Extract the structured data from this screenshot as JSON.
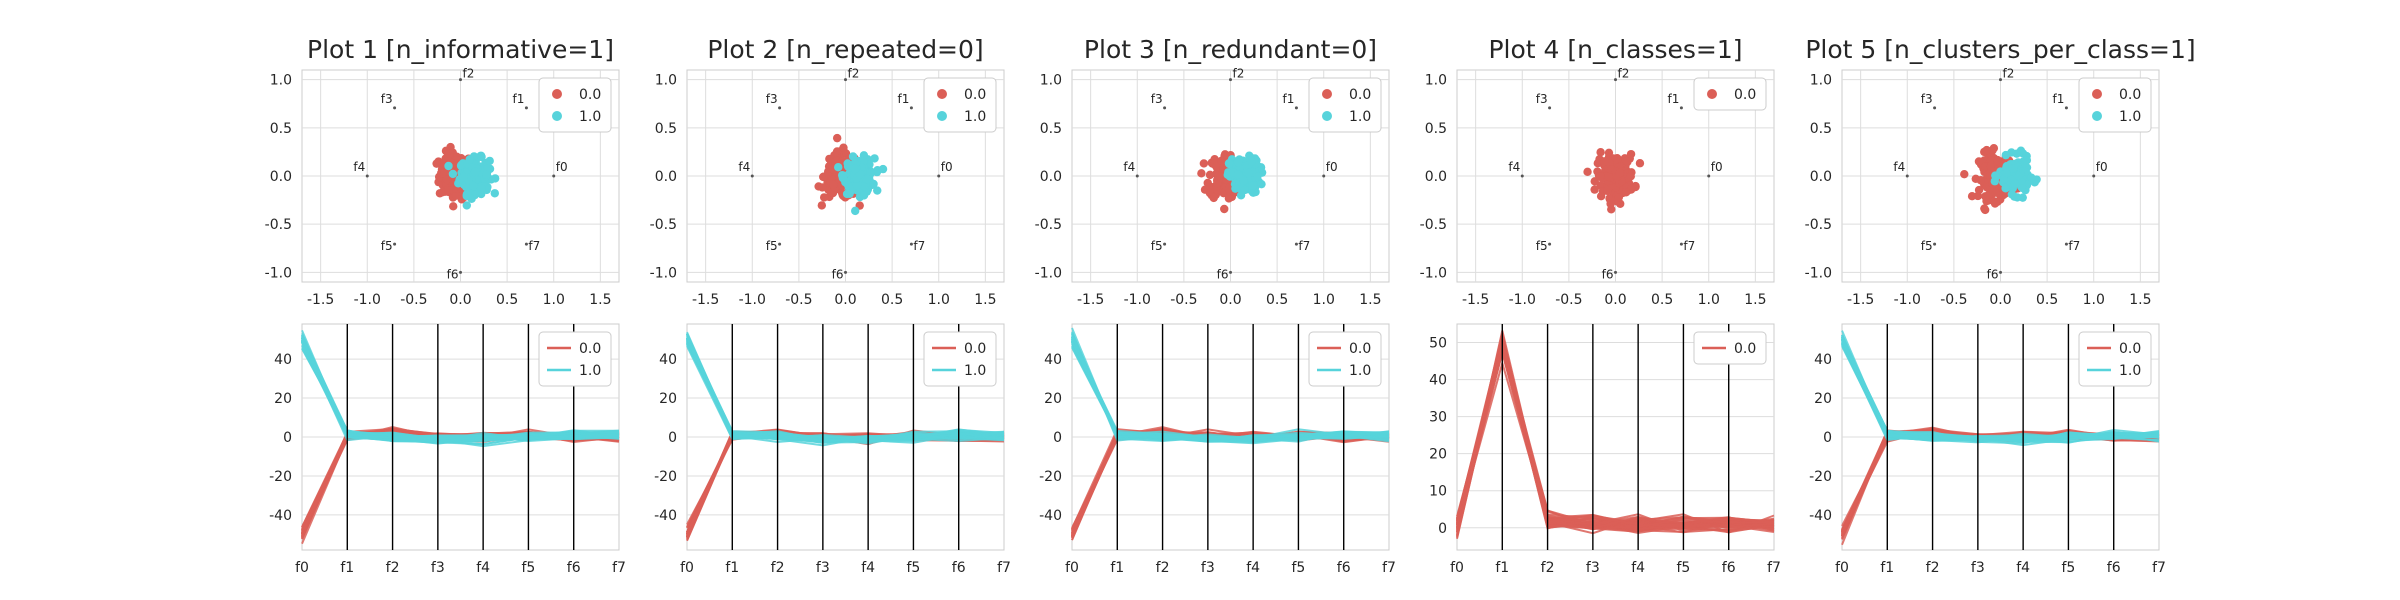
{
  "colors": {
    "class_0": "#db5f57",
    "class_1": "#57d3db",
    "grid": "#dddddd",
    "axis_line": "#000000"
  },
  "chart_data": [
    {
      "type": "scatter",
      "title": "Plot 1 [n_informative=1]",
      "xlim": [
        -1.7,
        1.7
      ],
      "ylim": [
        -1.1,
        1.1
      ],
      "xticks": [
        "-1.5",
        "-1.0",
        "-0.5",
        "0.0",
        "0.5",
        "1.0",
        "1.5"
      ],
      "yticks": [
        "1.0",
        "0.5",
        "0.0",
        "-0.5",
        "-1.0"
      ],
      "xtick_values": [
        -1.5,
        -1.0,
        -0.5,
        0.0,
        0.5,
        1.0,
        1.5
      ],
      "ytick_values": [
        1.0,
        0.5,
        0.0,
        -0.5,
        -1.0
      ],
      "anchors": [
        {
          "label": "f0",
          "x": 1.0,
          "y": 0.0
        },
        {
          "label": "f1",
          "x": 0.707,
          "y": 0.707
        },
        {
          "label": "f2",
          "x": 0.0,
          "y": 1.0
        },
        {
          "label": "f3",
          "x": -0.707,
          "y": 0.707
        },
        {
          "label": "f4",
          "x": -1.0,
          "y": 0.0
        },
        {
          "label": "f5",
          "x": -0.707,
          "y": -0.707
        },
        {
          "label": "f6",
          "x": 0.0,
          "y": -1.0
        },
        {
          "label": "f7",
          "x": 0.707,
          "y": -0.707
        }
      ],
      "series": [
        {
          "name": "0.0",
          "color": "#db5f57",
          "center": [
            -0.05,
            0.0
          ],
          "spread": [
            0.09,
            0.12
          ]
        },
        {
          "name": "1.0",
          "color": "#57d3db",
          "center": [
            0.15,
            0.0
          ],
          "spread": [
            0.08,
            0.09
          ]
        }
      ],
      "legend": "top-right",
      "grid": true
    },
    {
      "type": "scatter",
      "title": "Plot 2 [n_repeated=0]",
      "xlim": [
        -1.7,
        1.7
      ],
      "ylim": [
        -1.1,
        1.1
      ],
      "xticks": [
        "-1.5",
        "-1.0",
        "-0.5",
        "0.0",
        "0.5",
        "1.0",
        "1.5"
      ],
      "yticks": [
        "1.0",
        "0.5",
        "0.0",
        "-0.5",
        "-1.0"
      ],
      "xtick_values": [
        -1.5,
        -1.0,
        -0.5,
        0.0,
        0.5,
        1.0,
        1.5
      ],
      "ytick_values": [
        1.0,
        0.5,
        0.0,
        -0.5,
        -1.0
      ],
      "anchors": [
        {
          "label": "f0",
          "x": 1.0,
          "y": 0.0
        },
        {
          "label": "f1",
          "x": 0.707,
          "y": 0.707
        },
        {
          "label": "f2",
          "x": 0.0,
          "y": 1.0
        },
        {
          "label": "f3",
          "x": -0.707,
          "y": 0.707
        },
        {
          "label": "f4",
          "x": -1.0,
          "y": 0.0
        },
        {
          "label": "f5",
          "x": -0.707,
          "y": -0.707
        },
        {
          "label": "f6",
          "x": 0.0,
          "y": -1.0
        },
        {
          "label": "f7",
          "x": 0.707,
          "y": -0.707
        }
      ],
      "series": [
        {
          "name": "0.0",
          "color": "#db5f57",
          "center": [
            -0.05,
            0.0
          ],
          "spread": [
            0.09,
            0.12
          ]
        },
        {
          "name": "1.0",
          "color": "#57d3db",
          "center": [
            0.15,
            0.0
          ],
          "spread": [
            0.08,
            0.09
          ]
        }
      ],
      "legend": "top-right",
      "grid": true
    },
    {
      "type": "scatter",
      "title": "Plot 3 [n_redundant=0]",
      "xlim": [
        -1.7,
        1.7
      ],
      "ylim": [
        -1.1,
        1.1
      ],
      "xticks": [
        "-1.5",
        "-1.0",
        "-0.5",
        "0.0",
        "0.5",
        "1.0",
        "1.5"
      ],
      "yticks": [
        "1.0",
        "0.5",
        "0.0",
        "-0.5",
        "-1.0"
      ],
      "xtick_values": [
        -1.5,
        -1.0,
        -0.5,
        0.0,
        0.5,
        1.0,
        1.5
      ],
      "ytick_values": [
        1.0,
        0.5,
        0.0,
        -0.5,
        -1.0
      ],
      "anchors": [
        {
          "label": "f0",
          "x": 1.0,
          "y": 0.0
        },
        {
          "label": "f1",
          "x": 0.707,
          "y": 0.707
        },
        {
          "label": "f2",
          "x": 0.0,
          "y": 1.0
        },
        {
          "label": "f3",
          "x": -0.707,
          "y": 0.707
        },
        {
          "label": "f4",
          "x": -1.0,
          "y": 0.0
        },
        {
          "label": "f5",
          "x": -0.707,
          "y": -0.707
        },
        {
          "label": "f6",
          "x": 0.0,
          "y": -1.0
        },
        {
          "label": "f7",
          "x": 0.707,
          "y": -0.707
        }
      ],
      "series": [
        {
          "name": "0.0",
          "color": "#db5f57",
          "center": [
            -0.05,
            0.0
          ],
          "spread": [
            0.09,
            0.12
          ]
        },
        {
          "name": "1.0",
          "color": "#57d3db",
          "center": [
            0.15,
            0.0
          ],
          "spread": [
            0.08,
            0.09
          ]
        }
      ],
      "legend": "top-right",
      "grid": true
    },
    {
      "type": "scatter",
      "title": "Plot 4 [n_classes=1]",
      "xlim": [
        -1.7,
        1.7
      ],
      "ylim": [
        -1.1,
        1.1
      ],
      "xticks": [
        "-1.5",
        "-1.0",
        "-0.5",
        "0.0",
        "0.5",
        "1.0",
        "1.5"
      ],
      "yticks": [
        "1.0",
        "0.5",
        "0.0",
        "-0.5",
        "-1.0"
      ],
      "xtick_values": [
        -1.5,
        -1.0,
        -0.5,
        0.0,
        0.5,
        1.0,
        1.5
      ],
      "ytick_values": [
        1.0,
        0.5,
        0.0,
        -0.5,
        -1.0
      ],
      "anchors": [
        {
          "label": "f0",
          "x": 1.0,
          "y": 0.0
        },
        {
          "label": "f1",
          "x": 0.707,
          "y": 0.707
        },
        {
          "label": "f2",
          "x": 0.0,
          "y": 1.0
        },
        {
          "label": "f3",
          "x": -0.707,
          "y": 0.707
        },
        {
          "label": "f4",
          "x": -1.0,
          "y": 0.0
        },
        {
          "label": "f5",
          "x": -0.707,
          "y": -0.707
        },
        {
          "label": "f6",
          "x": 0.0,
          "y": -1.0
        },
        {
          "label": "f7",
          "x": 0.707,
          "y": -0.707
        }
      ],
      "series": [
        {
          "name": "0.0",
          "color": "#db5f57",
          "center": [
            0.0,
            0.0
          ],
          "spread": [
            0.1,
            0.11
          ]
        }
      ],
      "legend": "top-right",
      "grid": true
    },
    {
      "type": "scatter",
      "title": "Plot 5 [n_clusters_per_class=1]",
      "xlim": [
        -1.7,
        1.7
      ],
      "ylim": [
        -1.1,
        1.1
      ],
      "xticks": [
        "-1.5",
        "-1.0",
        "-0.5",
        "0.0",
        "0.5",
        "1.0",
        "1.5"
      ],
      "yticks": [
        "1.0",
        "0.5",
        "0.0",
        "-0.5",
        "-1.0"
      ],
      "xtick_values": [
        -1.5,
        -1.0,
        -0.5,
        0.0,
        0.5,
        1.0,
        1.5
      ],
      "ytick_values": [
        1.0,
        0.5,
        0.0,
        -0.5,
        -1.0
      ],
      "anchors": [
        {
          "label": "f0",
          "x": 1.0,
          "y": 0.0
        },
        {
          "label": "f1",
          "x": 0.707,
          "y": 0.707
        },
        {
          "label": "f2",
          "x": 0.0,
          "y": 1.0
        },
        {
          "label": "f3",
          "x": -0.707,
          "y": 0.707
        },
        {
          "label": "f4",
          "x": -1.0,
          "y": 0.0
        },
        {
          "label": "f5",
          "x": -0.707,
          "y": -0.707
        },
        {
          "label": "f6",
          "x": 0.0,
          "y": -1.0
        },
        {
          "label": "f7",
          "x": 0.707,
          "y": -0.707
        }
      ],
      "series": [
        {
          "name": "0.0",
          "color": "#db5f57",
          "center": [
            -0.05,
            0.0
          ],
          "spread": [
            0.09,
            0.12
          ]
        },
        {
          "name": "1.0",
          "color": "#57d3db",
          "center": [
            0.15,
            0.0
          ],
          "spread": [
            0.08,
            0.09
          ]
        }
      ],
      "legend": "top-right",
      "grid": true
    },
    {
      "type": "line",
      "categories": [
        "f0",
        "f1",
        "f2",
        "f3",
        "f4",
        "f5",
        "f6",
        "f7"
      ],
      "ylim": [
        -58,
        58
      ],
      "yticks": [
        "40",
        "20",
        "0",
        "-20",
        "-40"
      ],
      "ytick_values": [
        40,
        20,
        0,
        -20,
        -40
      ],
      "series": [
        {
          "name": "0.0",
          "color": "#db5f57",
          "values": [
            -50,
            1,
            2,
            0,
            0,
            1,
            0,
            0
          ]
        },
        {
          "name": "1.0",
          "color": "#57d3db",
          "values": [
            50,
            1,
            0,
            -1,
            -1,
            0,
            1,
            1
          ]
        }
      ],
      "legend": "top-right"
    },
    {
      "type": "line",
      "categories": [
        "f0",
        "f1",
        "f2",
        "f3",
        "f4",
        "f5",
        "f6",
        "f7"
      ],
      "ylim": [
        -58,
        58
      ],
      "yticks": [
        "40",
        "20",
        "0",
        "-20",
        "-40"
      ],
      "ytick_values": [
        40,
        20,
        0,
        -20,
        -40
      ],
      "series": [
        {
          "name": "0.0",
          "color": "#db5f57",
          "values": [
            -50,
            1,
            2,
            0,
            0,
            1,
            0,
            0
          ]
        },
        {
          "name": "1.0",
          "color": "#57d3db",
          "values": [
            50,
            1,
            0,
            -1,
            -1,
            0,
            1,
            1
          ]
        }
      ],
      "legend": "top-right"
    },
    {
      "type": "line",
      "categories": [
        "f0",
        "f1",
        "f2",
        "f3",
        "f4",
        "f5",
        "f6",
        "f7"
      ],
      "ylim": [
        -58,
        58
      ],
      "yticks": [
        "40",
        "20",
        "0",
        "-20",
        "-40"
      ],
      "ytick_values": [
        40,
        20,
        0,
        -20,
        -40
      ],
      "series": [
        {
          "name": "0.0",
          "color": "#db5f57",
          "values": [
            -50,
            1,
            2,
            0,
            0,
            1,
            0,
            0
          ]
        },
        {
          "name": "1.0",
          "color": "#57d3db",
          "values": [
            50,
            1,
            0,
            -1,
            -1,
            0,
            1,
            1
          ]
        }
      ],
      "legend": "top-right"
    },
    {
      "type": "line",
      "categories": [
        "f0",
        "f1",
        "f2",
        "f3",
        "f4",
        "f5",
        "f6",
        "f7"
      ],
      "ylim": [
        -6,
        55
      ],
      "yticks": [
        "50",
        "40",
        "30",
        "20",
        "10",
        "0"
      ],
      "ytick_values": [
        50,
        40,
        30,
        20,
        10,
        0
      ],
      "series": [
        {
          "name": "0.0",
          "color": "#db5f57",
          "values": [
            0,
            50,
            2,
            1,
            1,
            1,
            1,
            1
          ]
        }
      ],
      "legend": "top-right"
    },
    {
      "type": "line",
      "categories": [
        "f0",
        "f1",
        "f2",
        "f3",
        "f4",
        "f5",
        "f6",
        "f7"
      ],
      "ylim": [
        -58,
        58
      ],
      "yticks": [
        "40",
        "20",
        "0",
        "-20",
        "-40"
      ],
      "ytick_values": [
        40,
        20,
        0,
        -20,
        -40
      ],
      "series": [
        {
          "name": "0.0",
          "color": "#db5f57",
          "values": [
            -50,
            1,
            2,
            0,
            0,
            1,
            0,
            0
          ]
        },
        {
          "name": "1.0",
          "color": "#57d3db",
          "values": [
            50,
            1,
            0,
            -1,
            -1,
            0,
            1,
            1
          ]
        }
      ],
      "legend": "top-right"
    }
  ]
}
